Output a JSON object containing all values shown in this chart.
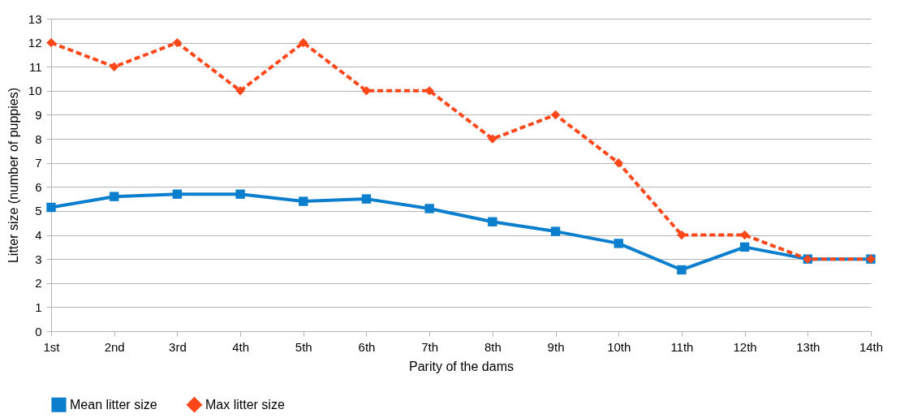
{
  "chart_data": {
    "type": "line",
    "xlabel": "Parity of the dams",
    "ylabel": "Litter size (number of puppies)",
    "categories": [
      "1st",
      "2nd",
      "3rd",
      "4th",
      "5th",
      "6th",
      "7th",
      "8th",
      "9th",
      "10th",
      "11th",
      "12th",
      "13th",
      "14th"
    ],
    "series": [
      {
        "name": "Mean litter size",
        "color": "#0b7fcd",
        "marker": "square",
        "line_style": "solid",
        "values": [
          5.15,
          5.6,
          5.7,
          5.7,
          5.4,
          5.5,
          5.1,
          4.55,
          4.15,
          3.65,
          2.55,
          3.5,
          3.0,
          3.0
        ]
      },
      {
        "name": "Max litter size",
        "color": "#ff4719",
        "marker": "diamond",
        "line_style": "dashed",
        "values": [
          12,
          11,
          12,
          10,
          12,
          10,
          10,
          8,
          9,
          7,
          4,
          4,
          3,
          3
        ]
      }
    ],
    "ylim": [
      0,
      13
    ],
    "yticks": [
      0,
      1,
      2,
      3,
      4,
      5,
      6,
      7,
      8,
      9,
      10,
      11,
      12,
      13
    ],
    "grid": "y",
    "legend": "bottom"
  }
}
